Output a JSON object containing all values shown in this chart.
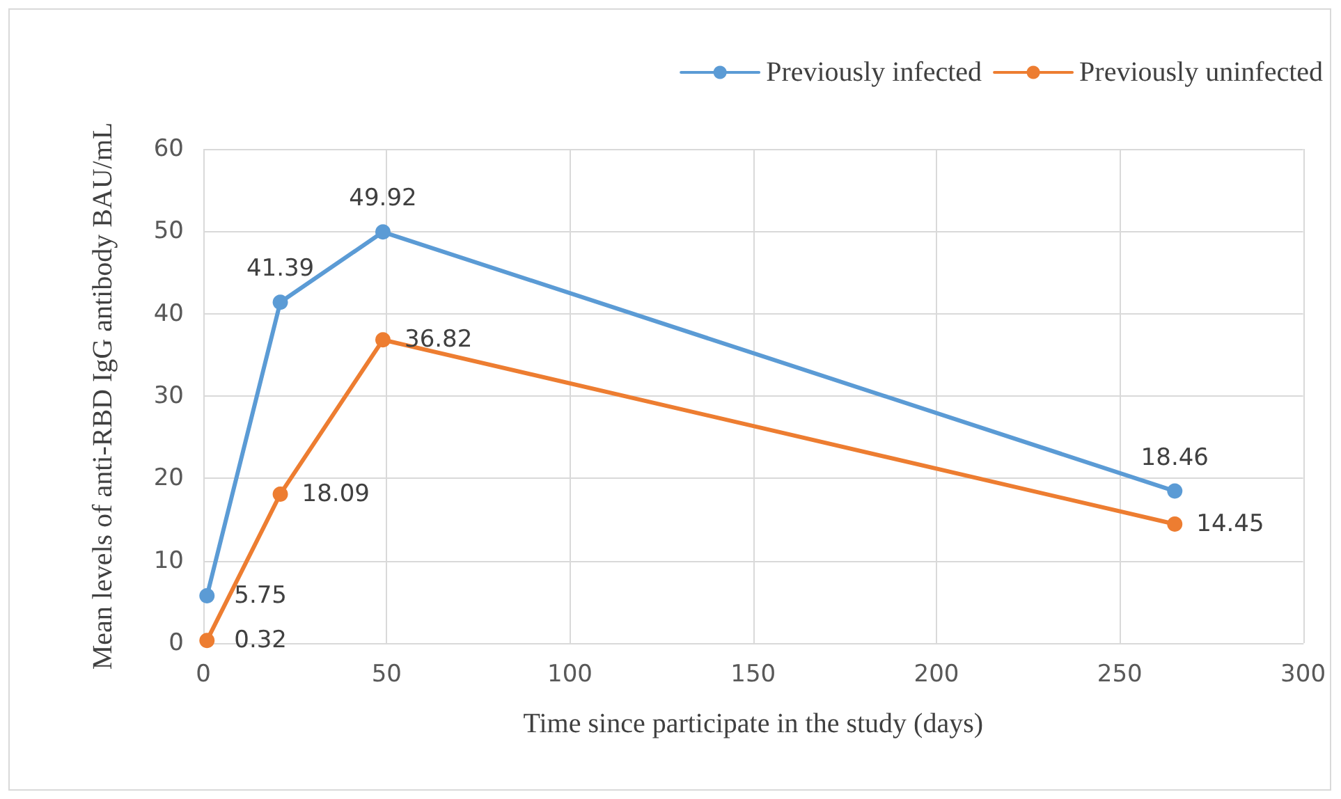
{
  "chart_data": {
    "type": "line",
    "xlabel": "Time since participate in the study (days)",
    "ylabel": "Mean levels of anti-RBD IgG antibody BAU/mL",
    "x": [
      1,
      21,
      49,
      265
    ],
    "series": [
      {
        "name": "Previously infected",
        "color": "#5b9bd5",
        "values": [
          5.75,
          41.39,
          49.92,
          18.46
        ]
      },
      {
        "name": "Previously uninfected",
        "color": "#ed7d31",
        "values": [
          0.32,
          18.09,
          36.82,
          14.45
        ]
      }
    ],
    "xlim": [
      0,
      300
    ],
    "xticks": [
      0,
      50,
      100,
      150,
      200,
      250,
      300
    ],
    "ylim": [
      0,
      60
    ],
    "yticks": [
      0,
      10,
      20,
      30,
      40,
      50,
      60
    ],
    "grid": true,
    "legend": "top right",
    "marker": "circle",
    "line_style": "solid",
    "data_labels": true
  }
}
